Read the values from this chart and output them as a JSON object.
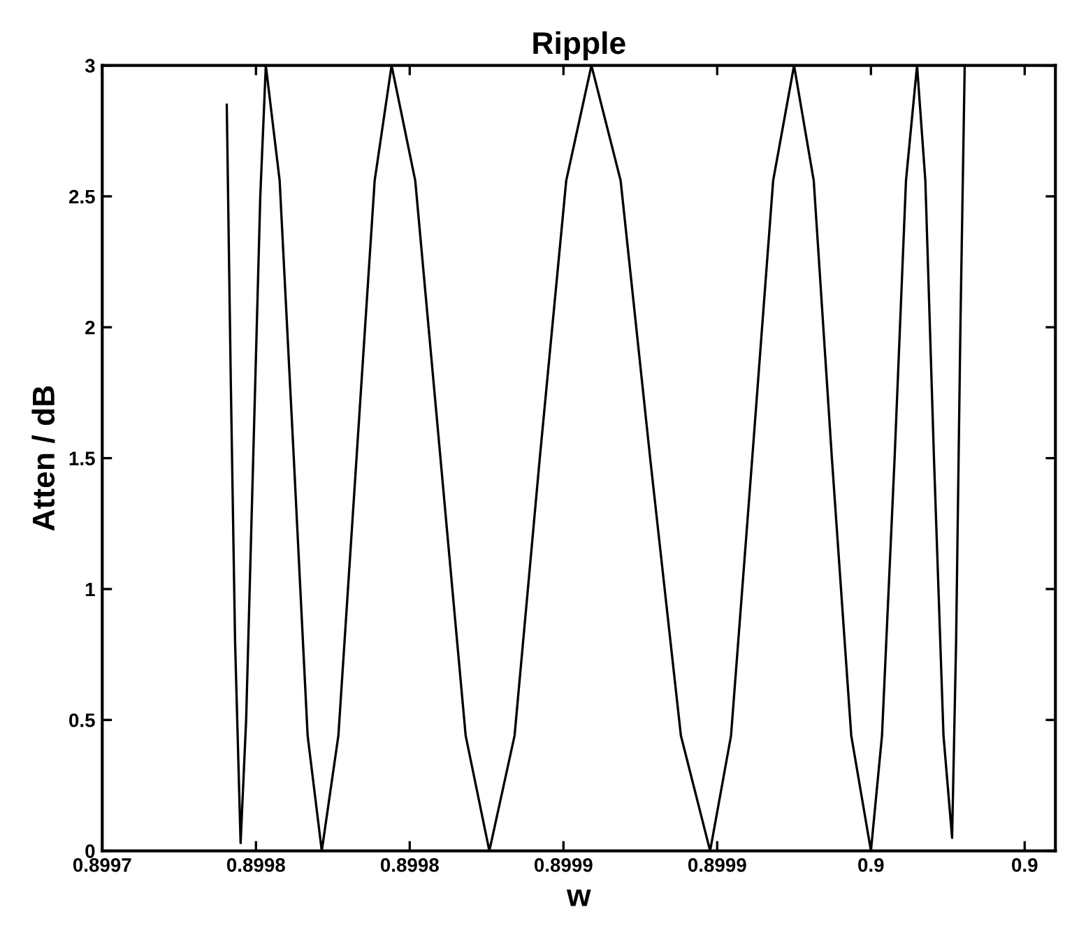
{
  "chart_data": {
    "type": "line",
    "title": "Ripple",
    "xlabel": "w",
    "ylabel": "Atten / dB",
    "xlim": [
      0.8997,
      0.90001
    ],
    "ylim": [
      0,
      3
    ],
    "xticks": [
      {
        "value": 0.8997,
        "label": "0.8997"
      },
      {
        "value": 0.89975,
        "label": "0.8998"
      },
      {
        "value": 0.8998,
        "label": "0.8998"
      },
      {
        "value": 0.89985,
        "label": "0.8999"
      },
      {
        "value": 0.8999,
        "label": "0.8999"
      },
      {
        "value": 0.89995,
        "label": "0.9"
      },
      {
        "value": 0.9,
        "label": "0.9"
      }
    ],
    "yticks": [
      0,
      0.5,
      1,
      1.5,
      2,
      2.5,
      3
    ],
    "marker": "none",
    "line_style": "solid",
    "series": [
      {
        "color": "#000000",
        "x": [
          0.8997405,
          0.8997418,
          0.8997432,
          0.899745,
          0.8997468,
          0.8997491,
          0.8997514,
          0.8997532,
          0.8997577,
          0.8997623,
          0.8997668,
          0.8997714,
          0.8997768,
          0.8997827,
          0.8997886,
          0.8997941,
          0.8998018,
          0.89981,
          0.8998182,
          0.8998259,
          0.8998341,
          0.8998423,
          0.8998509,
          0.8998591,
          0.8998686,
          0.8998782,
          0.8998882,
          0.8998977,
          0.8999045,
          0.8999114,
          0.8999182,
          0.899925,
          0.8999314,
          0.8999373,
          0.8999436,
          0.89995,
          0.8999536,
          0.8999577,
          0.8999614,
          0.899965,
          0.8999677,
          0.8999705,
          0.8999736,
          0.8999764,
          0.8999777,
          0.8999791,
          0.8999805
        ],
        "values": [
          2.85,
          1.8,
          0.8,
          0.03,
          0.5,
          1.5,
          2.5,
          3,
          2.56,
          1.5,
          0.44,
          0,
          0.44,
          1.5,
          2.56,
          3,
          2.56,
          1.5,
          0.44,
          0,
          0.44,
          1.5,
          2.56,
          3,
          2.56,
          1.5,
          0.44,
          0,
          0.44,
          1.5,
          2.56,
          3,
          2.56,
          1.5,
          0.44,
          0,
          0.44,
          1.5,
          2.56,
          3,
          2.56,
          1.5,
          0.44,
          0.05,
          0.8,
          2,
          3
        ]
      }
    ]
  }
}
